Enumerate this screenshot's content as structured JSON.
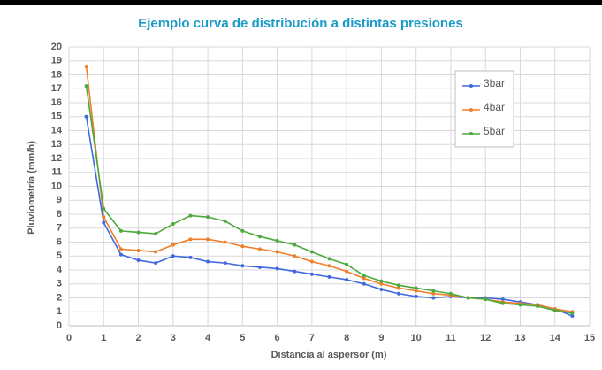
{
  "chart_data": {
    "type": "line",
    "title": "Ejemplo curva de distribución a distintas presiones",
    "xlabel": "Distancia al aspersor (m)",
    "ylabel": "Pluviometría (mm/h)",
    "x": [
      0.5,
      1,
      1.5,
      2,
      2.5,
      3,
      3.5,
      4,
      4.5,
      5,
      5.5,
      6,
      6.5,
      7,
      7.5,
      8,
      8.5,
      9,
      9.5,
      10,
      10.5,
      11,
      11.5,
      12,
      12.5,
      13,
      13.5,
      14,
      14.5
    ],
    "series": [
      {
        "name": "3bar",
        "color": "#4169e1",
        "values": [
          15,
          7.4,
          5.1,
          4.7,
          4.5,
          5.0,
          4.9,
          4.6,
          4.5,
          4.3,
          4.2,
          4.1,
          3.9,
          3.7,
          3.5,
          3.3,
          3.0,
          2.6,
          2.3,
          2.1,
          2.0,
          2.1,
          2.0,
          2.0,
          1.9,
          1.7,
          1.5,
          1.2,
          0.7
        ]
      },
      {
        "name": "4bar",
        "color": "#f07f2c",
        "values": [
          18.6,
          7.8,
          5.5,
          5.4,
          5.3,
          5.8,
          6.2,
          6.2,
          6.0,
          5.7,
          5.5,
          5.3,
          5.0,
          4.6,
          4.3,
          3.9,
          3.4,
          3.0,
          2.7,
          2.5,
          2.3,
          2.2,
          2.0,
          1.9,
          1.7,
          1.6,
          1.5,
          1.2,
          1.0
        ]
      },
      {
        "name": "5bar",
        "color": "#4caa3c",
        "values": [
          17.2,
          8.4,
          6.8,
          6.7,
          6.6,
          7.3,
          7.9,
          7.8,
          7.5,
          6.8,
          6.4,
          6.1,
          5.8,
          5.3,
          4.8,
          4.4,
          3.6,
          3.2,
          2.9,
          2.7,
          2.5,
          2.3,
          2.0,
          1.9,
          1.6,
          1.5,
          1.4,
          1.1,
          0.9
        ]
      }
    ],
    "xlim": [
      0,
      15
    ],
    "xticks": [
      0,
      1,
      2,
      3,
      4,
      5,
      6,
      7,
      8,
      9,
      10,
      11,
      12,
      13,
      14,
      15
    ],
    "ylim": [
      0,
      20
    ],
    "yticks": [
      0,
      1,
      2,
      3,
      4,
      5,
      6,
      7,
      8,
      9,
      10,
      11,
      12,
      13,
      14,
      15,
      16,
      17,
      18,
      19,
      20
    ],
    "grid": true,
    "legend": "upper right"
  }
}
